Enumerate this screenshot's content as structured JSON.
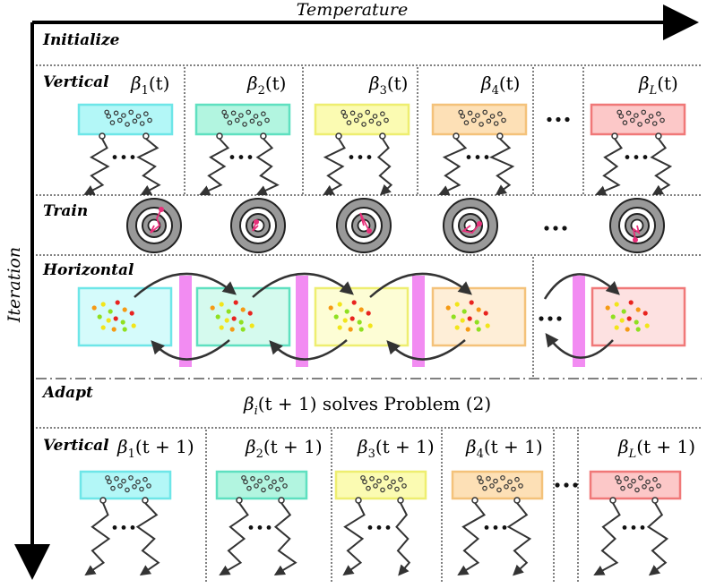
{
  "axes": {
    "x_label": "Temperature",
    "y_label": "Iteration"
  },
  "stages": {
    "initialize": "Initialize",
    "vertical": "Vertical",
    "train": "Train",
    "horizontal": "Horizontal",
    "adapt": "Adapt",
    "vertical_next": "Vertical"
  },
  "betas_t": {
    "b1": "β",
    "s1": "1",
    "a1": "(t)",
    "b2": "β",
    "s2": "2",
    "a2": "(t)",
    "b3": "β",
    "s3": "3",
    "a3": "(t)",
    "b4": "β",
    "s4": "4",
    "a4": "(t)",
    "bL": "β",
    "sL": "L",
    "aL": "(t)"
  },
  "betas_t1": {
    "b1": "β",
    "s1": "1",
    "a1": "(t + 1)",
    "b2": "β",
    "s2": "2",
    "a2": "(t + 1)",
    "b3": "β",
    "s3": "3",
    "a3": "(t + 1)",
    "b4": "β",
    "s4": "4",
    "a4": "(t + 1)",
    "bL": "β",
    "sL": "L",
    "aL": "(t + 1)"
  },
  "adapt_text": {
    "beta": "β",
    "sub": "i",
    "rest": "(t + 1) solves Problem (2)"
  },
  "colors": {
    "cyan": "#b3f7f7",
    "cyan_stroke": "#6ee6e8",
    "teal": "#b2f5e0",
    "teal_stroke": "#5fe0c0",
    "yellow": "#fbfbb2",
    "yellow_stroke": "#eeee70",
    "orange": "#fde0b6",
    "orange_stroke": "#f4c27a",
    "red": "#fcc8c8",
    "red_stroke": "#f07878",
    "magenta": "#ee66ee",
    "particle_red": "#e8231f",
    "particle_orange": "#f59a14",
    "particle_yellow": "#f2e51a",
    "particle_green": "#8fe020",
    "walk_pink": "#e8307a"
  }
}
